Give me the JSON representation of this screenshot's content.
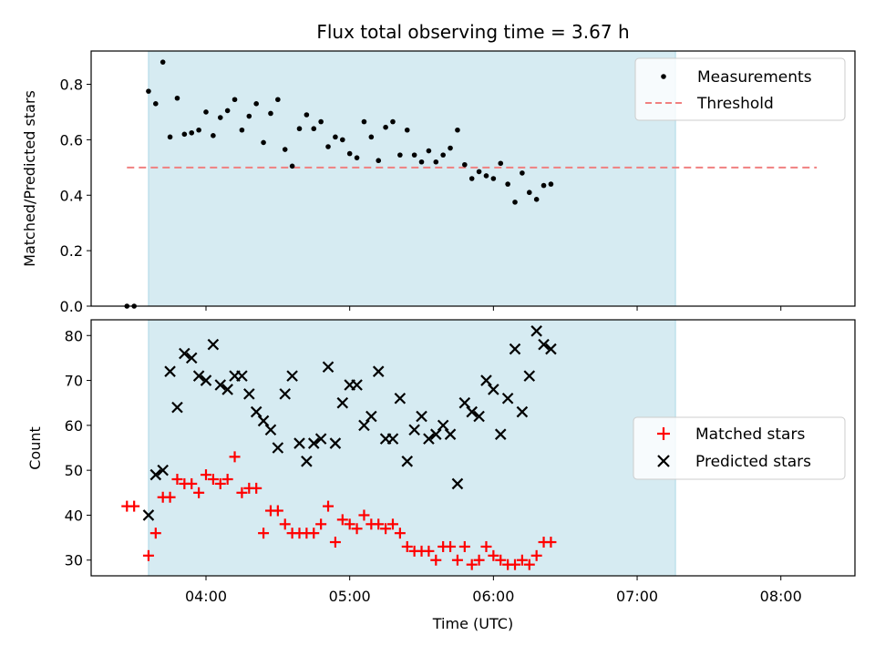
{
  "chart_data": {
    "title": "Flux total observing time = 3.67 h",
    "xlabel": "Time (UTC)",
    "x_ticks": [
      "04:00",
      "05:00",
      "06:00",
      "07:00",
      "08:00"
    ],
    "shaded_interval": [
      "03:36",
      "07:16"
    ],
    "shade_color": "#add8e6",
    "panels": [
      {
        "type": "scatter",
        "ylabel": "Matched/Predicted stars",
        "ylim": [
          0.0,
          0.92
        ],
        "y_ticks": [
          "0.0",
          "0.2",
          "0.4",
          "0.6",
          "0.8"
        ],
        "legend_position": "top-right",
        "series": [
          {
            "name": "Measurements",
            "marker": "dot",
            "color": "#000000",
            "points": [
              [
                "03:27",
                0.0
              ],
              [
                "03:30",
                0.0
              ],
              [
                "03:36",
                0.775
              ],
              [
                "03:39",
                0.73
              ],
              [
                "03:42",
                0.88
              ],
              [
                "03:45",
                0.61
              ],
              [
                "03:48",
                0.75
              ],
              [
                "03:51",
                0.62
              ],
              [
                "03:54",
                0.625
              ],
              [
                "03:57",
                0.635
              ],
              [
                "04:00",
                0.7
              ],
              [
                "04:03",
                0.615
              ],
              [
                "04:06",
                0.68
              ],
              [
                "04:09",
                0.705
              ],
              [
                "04:12",
                0.745
              ],
              [
                "04:15",
                0.635
              ],
              [
                "04:18",
                0.685
              ],
              [
                "04:21",
                0.73
              ],
              [
                "04:24",
                0.59
              ],
              [
                "04:27",
                0.695
              ],
              [
                "04:30",
                0.745
              ],
              [
                "04:33",
                0.565
              ],
              [
                "04:36",
                0.505
              ],
              [
                "04:39",
                0.64
              ],
              [
                "04:42",
                0.69
              ],
              [
                "04:45",
                0.64
              ],
              [
                "04:48",
                0.665
              ],
              [
                "04:51",
                0.575
              ],
              [
                "04:54",
                0.61
              ],
              [
                "04:57",
                0.6
              ],
              [
                "05:00",
                0.55
              ],
              [
                "05:03",
                0.535
              ],
              [
                "05:06",
                0.665
              ],
              [
                "05:09",
                0.61
              ],
              [
                "05:12",
                0.525
              ],
              [
                "05:15",
                0.645
              ],
              [
                "05:18",
                0.665
              ],
              [
                "05:21",
                0.545
              ],
              [
                "05:24",
                0.635
              ],
              [
                "05:27",
                0.545
              ],
              [
                "05:30",
                0.52
              ],
              [
                "05:33",
                0.56
              ],
              [
                "05:36",
                0.52
              ],
              [
                "05:39",
                0.545
              ],
              [
                "05:42",
                0.57
              ],
              [
                "05:45",
                0.635
              ],
              [
                "05:48",
                0.51
              ],
              [
                "05:51",
                0.46
              ],
              [
                "05:54",
                0.485
              ],
              [
                "05:57",
                0.47
              ],
              [
                "06:00",
                0.46
              ],
              [
                "06:03",
                0.515
              ],
              [
                "06:06",
                0.44
              ],
              [
                "06:09",
                0.375
              ],
              [
                "06:12",
                0.48
              ],
              [
                "06:15",
                0.41
              ],
              [
                "06:18",
                0.385
              ],
              [
                "06:21",
                0.435
              ],
              [
                "06:24",
                0.44
              ]
            ]
          },
          {
            "name": "Threshold",
            "type": "line",
            "style": "dashed",
            "color": "#f08080",
            "y": 0.5,
            "x_range": [
              "03:27",
              "08:15"
            ]
          }
        ]
      },
      {
        "type": "scatter",
        "ylabel": "Count",
        "ylim": [
          26.5,
          83.5
        ],
        "y_ticks": [
          "30",
          "40",
          "50",
          "60",
          "70",
          "80"
        ],
        "legend_position": "center-right",
        "series": [
          {
            "name": "Matched stars",
            "marker": "plus",
            "color": "#ff0000",
            "points": [
              [
                "03:27",
                42
              ],
              [
                "03:30",
                42
              ],
              [
                "03:36",
                31
              ],
              [
                "03:39",
                36
              ],
              [
                "03:42",
                44
              ],
              [
                "03:45",
                44
              ],
              [
                "03:48",
                48
              ],
              [
                "03:51",
                47
              ],
              [
                "03:54",
                47
              ],
              [
                "03:57",
                45
              ],
              [
                "04:00",
                49
              ],
              [
                "04:03",
                48
              ],
              [
                "04:06",
                47
              ],
              [
                "04:09",
                48
              ],
              [
                "04:12",
                53
              ],
              [
                "04:15",
                45
              ],
              [
                "04:18",
                46
              ],
              [
                "04:21",
                46
              ],
              [
                "04:24",
                36
              ],
              [
                "04:27",
                41
              ],
              [
                "04:30",
                41
              ],
              [
                "04:33",
                38
              ],
              [
                "04:36",
                36
              ],
              [
                "04:39",
                36
              ],
              [
                "04:42",
                36
              ],
              [
                "04:45",
                36
              ],
              [
                "04:48",
                38
              ],
              [
                "04:51",
                42
              ],
              [
                "04:54",
                34
              ],
              [
                "04:57",
                39
              ],
              [
                "05:00",
                38
              ],
              [
                "05:03",
                37
              ],
              [
                "05:06",
                40
              ],
              [
                "05:09",
                38
              ],
              [
                "05:12",
                38
              ],
              [
                "05:15",
                37
              ],
              [
                "05:18",
                38
              ],
              [
                "05:21",
                36
              ],
              [
                "05:24",
                33
              ],
              [
                "05:27",
                32
              ],
              [
                "05:30",
                32
              ],
              [
                "05:33",
                32
              ],
              [
                "05:36",
                30
              ],
              [
                "05:39",
                33
              ],
              [
                "05:42",
                33
              ],
              [
                "05:45",
                30
              ],
              [
                "05:48",
                33
              ],
              [
                "05:51",
                29
              ],
              [
                "05:54",
                30
              ],
              [
                "05:57",
                33
              ],
              [
                "06:00",
                31
              ],
              [
                "06:03",
                30
              ],
              [
                "06:06",
                29
              ],
              [
                "06:09",
                29
              ],
              [
                "06:12",
                30
              ],
              [
                "06:15",
                29
              ],
              [
                "06:18",
                31
              ],
              [
                "06:21",
                34
              ],
              [
                "06:24",
                34
              ]
            ]
          },
          {
            "name": "Predicted stars",
            "marker": "x",
            "color": "#000000",
            "points": [
              [
                "03:36",
                40
              ],
              [
                "03:39",
                49
              ],
              [
                "03:42",
                50
              ],
              [
                "03:45",
                72
              ],
              [
                "03:48",
                64
              ],
              [
                "03:51",
                76
              ],
              [
                "03:54",
                75
              ],
              [
                "03:57",
                71
              ],
              [
                "04:00",
                70
              ],
              [
                "04:03",
                78
              ],
              [
                "04:06",
                69
              ],
              [
                "04:09",
                68
              ],
              [
                "04:12",
                71
              ],
              [
                "04:15",
                71
              ],
              [
                "04:18",
                67
              ],
              [
                "04:21",
                63
              ],
              [
                "04:24",
                61
              ],
              [
                "04:27",
                59
              ],
              [
                "04:30",
                55
              ],
              [
                "04:33",
                67
              ],
              [
                "04:36",
                71
              ],
              [
                "04:39",
                56
              ],
              [
                "04:42",
                52
              ],
              [
                "04:45",
                56
              ],
              [
                "04:48",
                57
              ],
              [
                "04:51",
                73
              ],
              [
                "04:54",
                56
              ],
              [
                "04:57",
                65
              ],
              [
                "05:00",
                69
              ],
              [
                "05:03",
                69
              ],
              [
                "05:06",
                60
              ],
              [
                "05:09",
                62
              ],
              [
                "05:12",
                72
              ],
              [
                "05:15",
                57
              ],
              [
                "05:18",
                57
              ],
              [
                "05:21",
                66
              ],
              [
                "05:24",
                52
              ],
              [
                "05:27",
                59
              ],
              [
                "05:30",
                62
              ],
              [
                "05:33",
                57
              ],
              [
                "05:36",
                58
              ],
              [
                "05:39",
                60
              ],
              [
                "05:42",
                58
              ],
              [
                "05:45",
                47
              ],
              [
                "05:48",
                65
              ],
              [
                "05:51",
                63
              ],
              [
                "05:54",
                62
              ],
              [
                "05:57",
                70
              ],
              [
                "06:00",
                68
              ],
              [
                "06:03",
                58
              ],
              [
                "06:06",
                66
              ],
              [
                "06:09",
                77
              ],
              [
                "06:12",
                63
              ],
              [
                "06:15",
                71
              ],
              [
                "06:18",
                81
              ],
              [
                "06:21",
                78
              ],
              [
                "06:24",
                77
              ]
            ]
          }
        ]
      }
    ]
  }
}
